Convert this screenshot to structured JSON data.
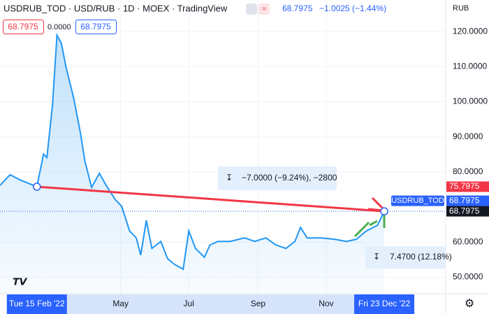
{
  "chart_data": {
    "type": "area",
    "title": "USDRUB_TOD · USD/RUB · 1D · MOEX · TradingView",
    "header": {
      "last": "68.7975",
      "change": "−1.0025 (−1.44%)",
      "currency": "RUB",
      "box_left": "68.7975",
      "spread": "0.0000",
      "box_right": "68.7975"
    },
    "series": [
      {
        "name": "USDRUB_TOD",
        "color": "#2196f3",
        "x": [
          13,
          22,
          32,
          46,
          52,
          55,
          60,
          64,
          68,
          72,
          79,
          85,
          89,
          95,
          102,
          108,
          116,
          122,
          129,
          135,
          139,
          144,
          149,
          157,
          163,
          169,
          177,
          182,
          188,
          196,
          201,
          208,
          219,
          232,
          241,
          251,
          260,
          269,
          277,
          282,
          288,
          301,
          313,
          323,
          332,
          341,
          351,
          357
        ],
        "values": [
          76.2,
          79.2,
          77.6,
          75.8,
          85.1,
          84.1,
          99.1,
          119,
          116.6,
          110,
          101,
          91.1,
          83.1,
          75.6,
          79.6,
          76.2,
          72.2,
          70.2,
          63.2,
          61.2,
          56.3,
          66.2,
          58.2,
          60.2,
          55.3,
          53.7,
          52.3,
          63.2,
          58.2,
          55.7,
          59.2,
          60.2,
          60.2,
          61.2,
          60.2,
          61.2,
          59.2,
          58.2,
          60.2,
          64.2,
          61.2,
          61.2,
          60.8,
          60.2,
          60.8,
          63.2,
          64.8,
          68.8
        ]
      }
    ],
    "xlim": [
      13,
      412
    ],
    "xticks": [
      {
        "value": 46,
        "label": "Tue 15 Feb '22"
      },
      {
        "value": 121,
        "label": "May"
      },
      {
        "value": 182,
        "label": "Jul"
      },
      {
        "value": 244,
        "label": "Sep"
      },
      {
        "value": 305,
        "label": "Nov"
      },
      {
        "value": 357,
        "label": "Fri 23 Dec '22"
      }
    ],
    "ylim": [
      45.3,
      129
    ],
    "yticks": [
      {
        "value": 50,
        "label": "50.0000"
      },
      {
        "value": 60,
        "label": "60.0000"
      },
      {
        "value": 80,
        "label": "80.0000"
      },
      {
        "value": 90,
        "label": "90.0000"
      },
      {
        "value": 100,
        "label": "100.0000"
      },
      {
        "value": 110,
        "label": "110.0000"
      },
      {
        "value": 120,
        "label": "120.0000"
      }
    ],
    "trend_line": {
      "color": "#f23645",
      "x": [
        46,
        357
      ],
      "values": [
        75.8,
        68.8
      ]
    },
    "price_labels": [
      {
        "value": 75.7975,
        "label": "75.7975",
        "color": "#f23645"
      },
      {
        "value": 68.7975,
        "label": "68.7975",
        "color": "#2962ff",
        "tag": "USDRUB_TOD"
      },
      {
        "value": 68.7975,
        "label": "68.7975",
        "color": "#131722"
      }
    ],
    "measures": [
      "−7.0000 (−9.24%), −2800",
      "7.4700 (12.18%)"
    ]
  }
}
